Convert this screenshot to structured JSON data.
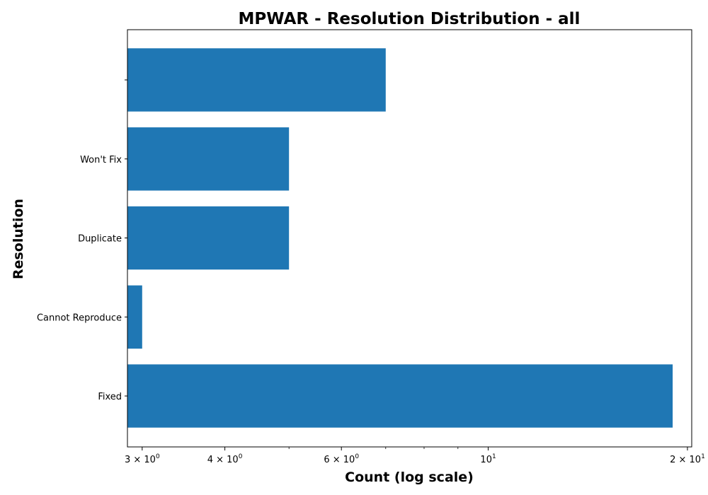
{
  "chart_data": {
    "type": "bar",
    "orientation": "horizontal",
    "title": "MPWAR - Resolution Distribution - all",
    "xlabel": "Count (log scale)",
    "ylabel": "Resolution",
    "x_scale": "log",
    "xlim": [
      2.85,
      20.3
    ],
    "grid": false,
    "legend": "none",
    "bar_color": "#1f77b4",
    "categories": [
      "Fixed",
      "Cannot Reproduce",
      "Duplicate",
      "Won't Fix",
      ""
    ],
    "values": [
      19,
      3,
      5,
      5,
      7
    ],
    "x_ticks": [
      {
        "value": 3,
        "base": "3 × 10",
        "exp": "0"
      },
      {
        "value": 4,
        "base": "4 × 10",
        "exp": "0"
      },
      {
        "value": 6,
        "base": "6 × 10",
        "exp": "0"
      },
      {
        "value": 10,
        "base": "10",
        "exp": "1"
      },
      {
        "value": 20,
        "base": "2 × 10",
        "exp": "1"
      }
    ],
    "x_minor_ticks": [
      5,
      7,
      8,
      9
    ]
  }
}
